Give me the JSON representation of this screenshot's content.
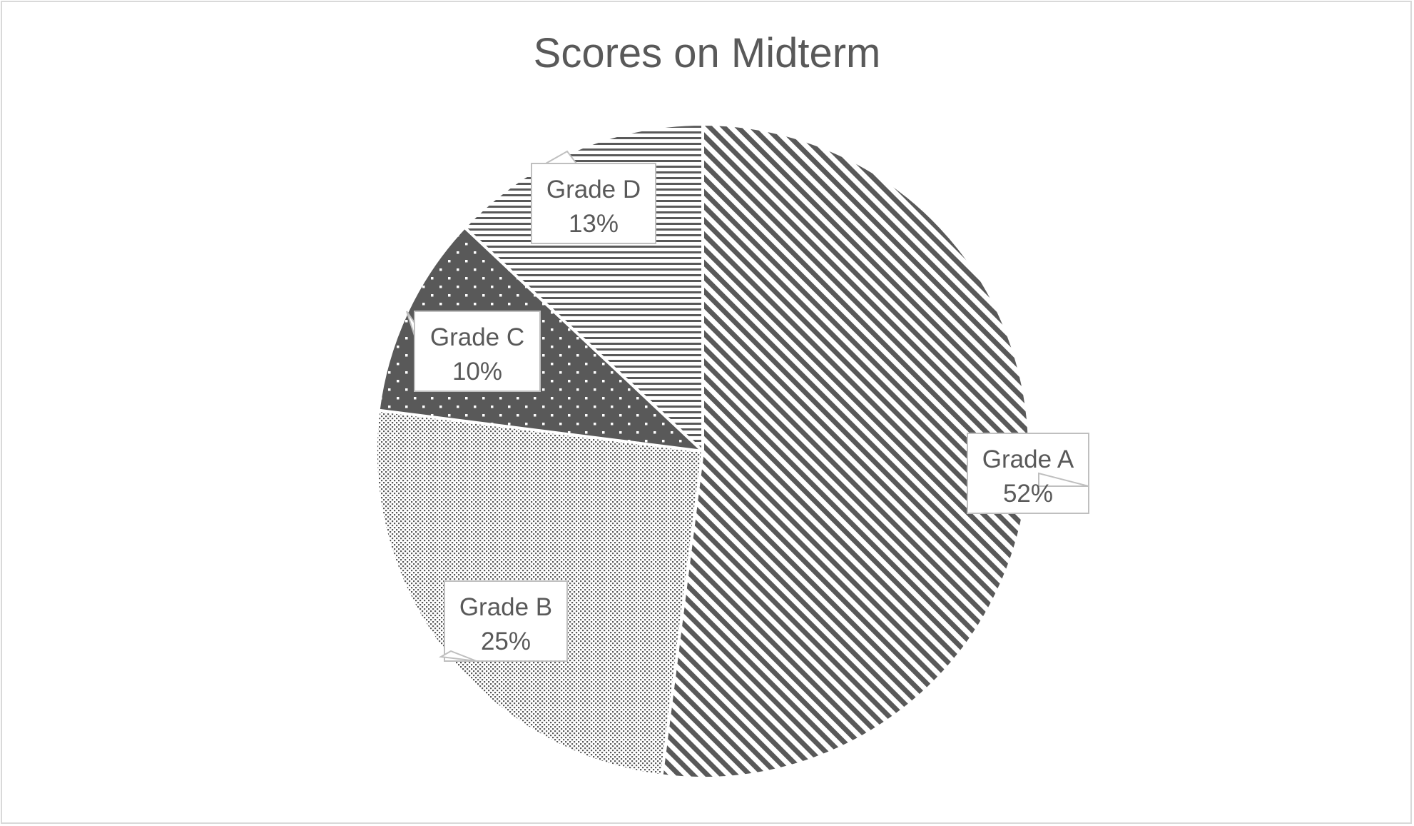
{
  "chart_data": {
    "type": "pie",
    "title": "Scores on Midterm",
    "slices": [
      {
        "category": "Grade A",
        "value": 52,
        "label": "52%",
        "color": "#595959",
        "pattern": "diagonal-stripes"
      },
      {
        "category": "Grade B",
        "value": 25,
        "label": "25%",
        "color": "#595959",
        "pattern": "fine-dots"
      },
      {
        "category": "Grade C",
        "value": 10,
        "label": "10%",
        "color": "#595959",
        "pattern": "white-dots-on-dark"
      },
      {
        "category": "Grade D",
        "value": 13,
        "label": "13%",
        "color": "#595959",
        "pattern": "horizontal-lines"
      }
    ],
    "legend": "none",
    "data_labels": "callouts"
  }
}
